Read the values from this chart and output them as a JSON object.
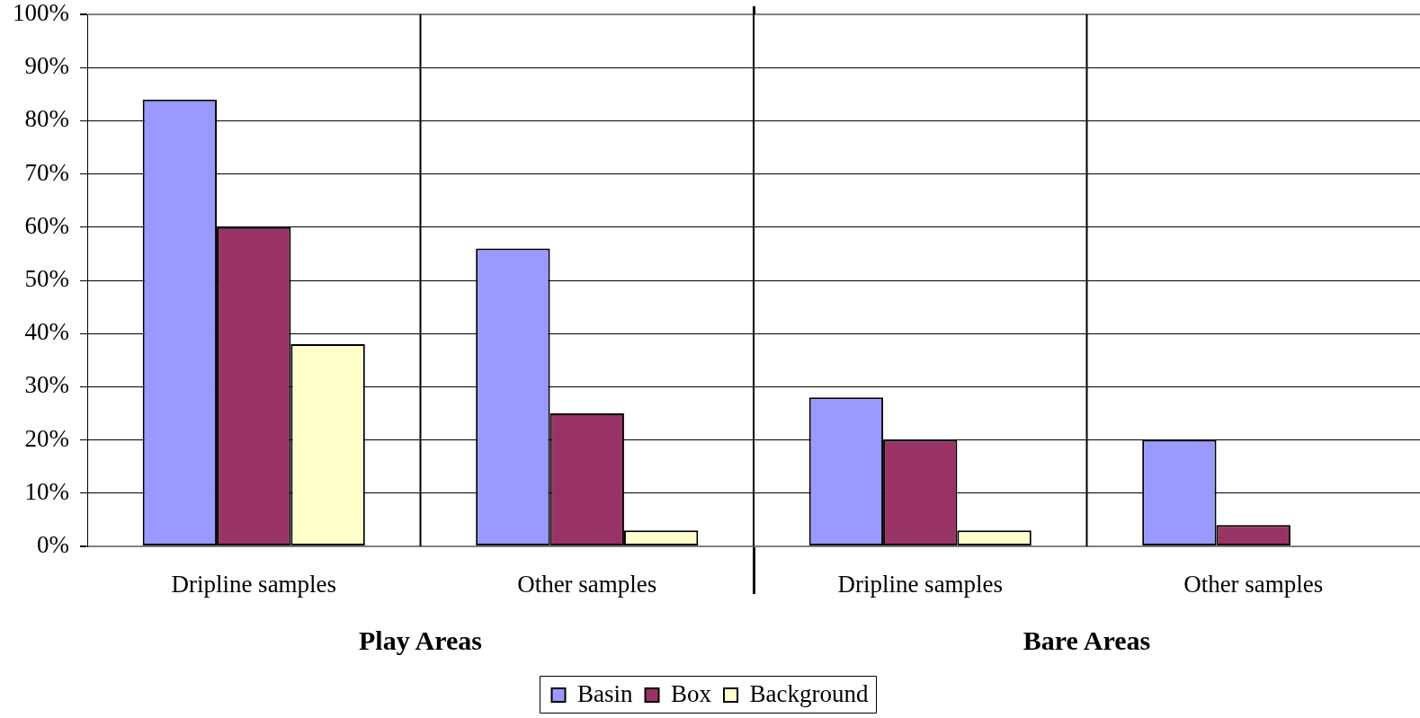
{
  "chart_data": {
    "type": "bar",
    "categories": [
      "Dripline samples",
      "Other samples",
      "Dripline samples",
      "Other samples"
    ],
    "series": [
      {
        "name": "Basin",
        "color": "#9999ff",
        "values": [
          84,
          56,
          28,
          20
        ]
      },
      {
        "name": "Box",
        "color": "#993366",
        "values": [
          60,
          25,
          20,
          4
        ]
      },
      {
        "name": "Background",
        "color": "#ffffcc",
        "values": [
          38,
          3,
          3,
          null
        ]
      }
    ],
    "ylim": [
      0,
      100
    ],
    "yticks": [
      {
        "value": 0,
        "label": "0%"
      },
      {
        "value": 10,
        "label": "10%"
      },
      {
        "value": 20,
        "label": "20%"
      },
      {
        "value": 30,
        "label": "30%"
      },
      {
        "value": 40,
        "label": "40%"
      },
      {
        "value": 50,
        "label": "50%"
      },
      {
        "value": 60,
        "label": "60%"
      },
      {
        "value": 70,
        "label": "70%"
      },
      {
        "value": 80,
        "label": "80%"
      },
      {
        "value": 90,
        "label": "90%"
      },
      {
        "value": 100,
        "label": "100%"
      }
    ],
    "grid": true,
    "legend": "bottom",
    "annotations": [
      "Play Areas",
      "Bare Areas"
    ]
  }
}
